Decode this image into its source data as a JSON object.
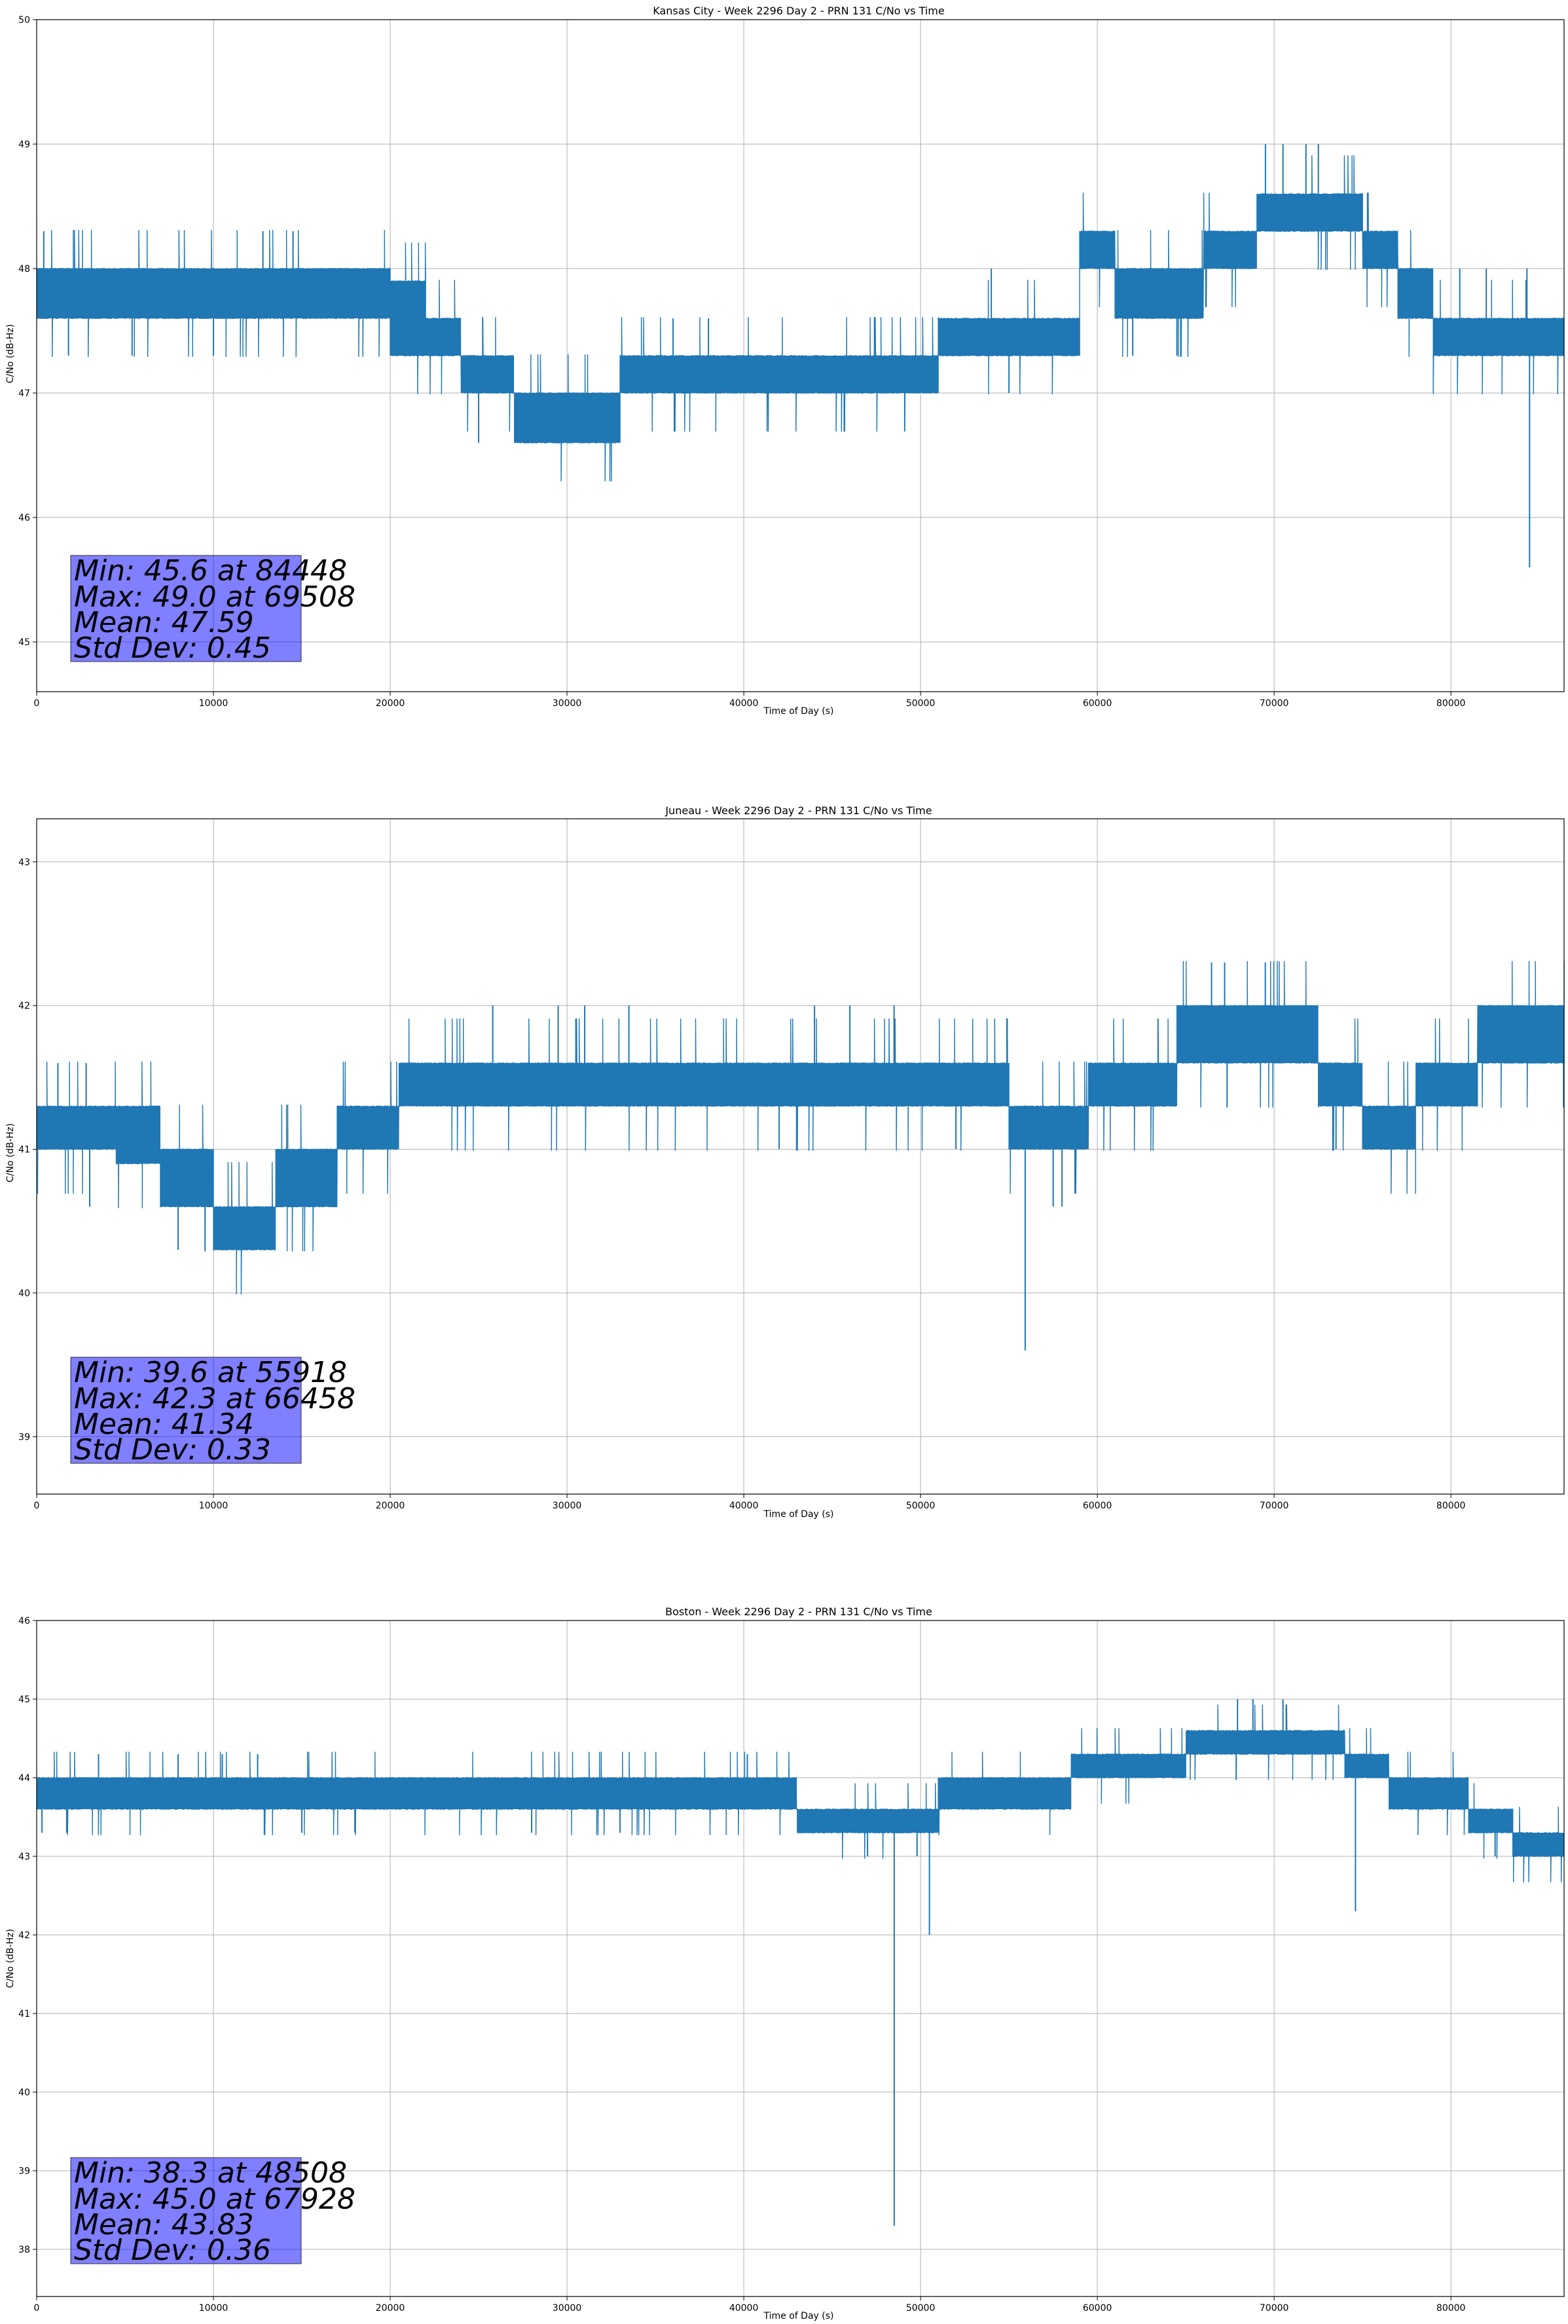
{
  "chart_data": [
    {
      "type": "line",
      "title": "Kansas City - Week 2296 Day 2 - PRN 131 C/No vs Time",
      "xlabel": "Time of Day (s)",
      "ylabel": "C/No (dB-Hz)",
      "xlim": [
        0,
        86400
      ],
      "ylim": [
        44.6,
        50.0
      ],
      "xticks": [
        0,
        10000,
        20000,
        30000,
        40000,
        50000,
        60000,
        70000,
        80000
      ],
      "yticks": [
        45,
        46,
        47,
        48,
        49,
        50
      ],
      "grid": true,
      "line_color": "#1f77b4",
      "quantum": 0.31,
      "series": [
        {
          "band_segments": [
            {
              "x0": 0,
              "x1": 20000,
              "lo": 47.6,
              "hi": 48.0
            },
            {
              "x0": 20000,
              "x1": 22000,
              "lo": 47.3,
              "hi": 47.9
            },
            {
              "x0": 22000,
              "x1": 24000,
              "lo": 47.3,
              "hi": 47.6
            },
            {
              "x0": 24000,
              "x1": 27000,
              "lo": 47.0,
              "hi": 47.3
            },
            {
              "x0": 27000,
              "x1": 33000,
              "lo": 46.6,
              "hi": 47.0
            },
            {
              "x0": 33000,
              "x1": 40000,
              "lo": 47.0,
              "hi": 47.3
            },
            {
              "x0": 40000,
              "x1": 51000,
              "lo": 47.0,
              "hi": 47.3
            },
            {
              "x0": 51000,
              "x1": 59000,
              "lo": 47.3,
              "hi": 47.6
            },
            {
              "x0": 59000,
              "x1": 61000,
              "lo": 48.0,
              "hi": 48.3
            },
            {
              "x0": 61000,
              "x1": 66000,
              "lo": 47.6,
              "hi": 48.0
            },
            {
              "x0": 66000,
              "x1": 69000,
              "lo": 48.0,
              "hi": 48.3
            },
            {
              "x0": 69000,
              "x1": 75000,
              "lo": 48.3,
              "hi": 48.6
            },
            {
              "x0": 75000,
              "x1": 77000,
              "lo": 48.0,
              "hi": 48.3
            },
            {
              "x0": 77000,
              "x1": 79000,
              "lo": 47.6,
              "hi": 48.0
            },
            {
              "x0": 79000,
              "x1": 86400,
              "lo": 47.3,
              "hi": 47.6
            }
          ],
          "spikes": [
            {
              "x": 84448,
              "y": 45.6
            },
            {
              "x": 69508,
              "y": 49.0
            },
            {
              "x": 70500,
              "y": 49.0
            },
            {
              "x": 71800,
              "y": 49.0
            },
            {
              "x": 12800,
              "y": 48.3
            },
            {
              "x": 14500,
              "y": 48.3
            },
            {
              "x": 400,
              "y": 48.3
            },
            {
              "x": 1800,
              "y": 47.3
            },
            {
              "x": 5400,
              "y": 47.3
            },
            {
              "x": 10000,
              "y": 47.3
            },
            {
              "x": 25000,
              "y": 46.6
            },
            {
              "x": 36000,
              "y": 47.6
            },
            {
              "x": 38000,
              "y": 47.6
            },
            {
              "x": 55000,
              "y": 47.0
            },
            {
              "x": 54000,
              "y": 48.0
            },
            {
              "x": 62000,
              "y": 47.3
            },
            {
              "x": 64500,
              "y": 47.3
            },
            {
              "x": 72500,
              "y": 49.0
            },
            {
              "x": 80500,
              "y": 48.0
            },
            {
              "x": 82000,
              "y": 48.0
            },
            {
              "x": 84300,
              "y": 48.0
            },
            {
              "x": 85500,
              "y": 47.3
            }
          ]
        }
      ],
      "stats": {
        "min": "Min: 45.6 at 84448",
        "max": "Max: 49.0 at 69508",
        "mean": "Mean: 47.59",
        "std": "Std Dev: 0.45"
      }
    },
    {
      "type": "line",
      "title": "Juneau - Week 2296 Day 2 - PRN 131 C/No vs Time",
      "xlabel": "Time of Day (s)",
      "ylabel": "C/No (dB-Hz)",
      "xlim": [
        0,
        86400
      ],
      "ylim": [
        38.6,
        43.3
      ],
      "xticks": [
        0,
        10000,
        20000,
        30000,
        40000,
        50000,
        60000,
        70000,
        80000
      ],
      "yticks": [
        39,
        40,
        41,
        42,
        43
      ],
      "grid": true,
      "line_color": "#1f77b4",
      "quantum": 0.31,
      "series": [
        {
          "band_segments": [
            {
              "x0": 0,
              "x1": 4500,
              "lo": 41.0,
              "hi": 41.3
            },
            {
              "x0": 4500,
              "x1": 7000,
              "lo": 40.9,
              "hi": 41.3
            },
            {
              "x0": 7000,
              "x1": 10000,
              "lo": 40.6,
              "hi": 41.0
            },
            {
              "x0": 10000,
              "x1": 13500,
              "lo": 40.3,
              "hi": 40.6
            },
            {
              "x0": 13500,
              "x1": 17000,
              "lo": 40.6,
              "hi": 41.0
            },
            {
              "x0": 17000,
              "x1": 20500,
              "lo": 41.0,
              "hi": 41.3
            },
            {
              "x0": 20500,
              "x1": 55000,
              "lo": 41.3,
              "hi": 41.6
            },
            {
              "x0": 55000,
              "x1": 59500,
              "lo": 41.0,
              "hi": 41.3
            },
            {
              "x0": 59500,
              "x1": 64500,
              "lo": 41.3,
              "hi": 41.6
            },
            {
              "x0": 64500,
              "x1": 66500,
              "lo": 41.6,
              "hi": 42.0
            },
            {
              "x0": 66500,
              "x1": 72500,
              "lo": 41.6,
              "hi": 42.0
            },
            {
              "x0": 72500,
              "x1": 75000,
              "lo": 41.3,
              "hi": 41.6
            },
            {
              "x0": 75000,
              "x1": 78000,
              "lo": 41.0,
              "hi": 41.3
            },
            {
              "x0": 78000,
              "x1": 81500,
              "lo": 41.3,
              "hi": 41.6
            },
            {
              "x0": 81500,
              "x1": 86400,
              "lo": 41.6,
              "hi": 42.0
            }
          ],
          "spikes": [
            {
              "x": 55918,
              "y": 39.6
            },
            {
              "x": 66458,
              "y": 42.3
            },
            {
              "x": 67200,
              "y": 42.3
            },
            {
              "x": 69500,
              "y": 42.3
            },
            {
              "x": 3000,
              "y": 40.6
            },
            {
              "x": 8000,
              "y": 40.3
            },
            {
              "x": 1200,
              "y": 41.6
            },
            {
              "x": 2800,
              "y": 41.6
            },
            {
              "x": 25800,
              "y": 42.0
            },
            {
              "x": 29500,
              "y": 42.0
            },
            {
              "x": 31000,
              "y": 42.0
            },
            {
              "x": 33500,
              "y": 42.0
            },
            {
              "x": 42000,
              "y": 41.0
            },
            {
              "x": 44000,
              "y": 42.0
            },
            {
              "x": 46000,
              "y": 42.0
            },
            {
              "x": 48500,
              "y": 42.0
            },
            {
              "x": 52000,
              "y": 41.0
            },
            {
              "x": 57500,
              "y": 40.6
            },
            {
              "x": 58000,
              "y": 40.6
            },
            {
              "x": 73500,
              "y": 41.0
            },
            {
              "x": 76500,
              "y": 41.0
            },
            {
              "x": 83000,
              "y": 42.0
            }
          ]
        }
      ],
      "stats": {
        "min": "Min: 39.6 at 55918",
        "max": "Max: 42.3 at 66458",
        "mean": "Mean: 41.34",
        "std": "Std Dev: 0.33"
      }
    },
    {
      "type": "line",
      "title": "Boston - Week 2296 Day 2 - PRN 131 C/No vs Time",
      "xlabel": "Time of Day (s)",
      "ylabel": "C/No (dB-Hz)",
      "xlim": [
        0,
        86400
      ],
      "ylim": [
        37.4,
        46.0
      ],
      "xticks": [
        0,
        10000,
        20000,
        30000,
        40000,
        50000,
        60000,
        70000,
        80000
      ],
      "yticks": [
        38,
        39,
        40,
        41,
        42,
        43,
        44,
        45,
        46
      ],
      "grid": true,
      "line_color": "#1f77b4",
      "quantum": 0.33,
      "series": [
        {
          "band_segments": [
            {
              "x0": 0,
              "x1": 2000,
              "lo": 43.6,
              "hi": 44.0
            },
            {
              "x0": 2000,
              "x1": 43000,
              "lo": 43.6,
              "hi": 44.0
            },
            {
              "x0": 43000,
              "x1": 51000,
              "lo": 43.3,
              "hi": 43.6
            },
            {
              "x0": 51000,
              "x1": 58500,
              "lo": 43.6,
              "hi": 44.0
            },
            {
              "x0": 58500,
              "x1": 65000,
              "lo": 44.0,
              "hi": 44.3
            },
            {
              "x0": 65000,
              "x1": 74000,
              "lo": 44.3,
              "hi": 44.6
            },
            {
              "x0": 74000,
              "x1": 76500,
              "lo": 44.0,
              "hi": 44.3
            },
            {
              "x0": 76500,
              "x1": 81000,
              "lo": 43.6,
              "hi": 44.0
            },
            {
              "x0": 81000,
              "x1": 83500,
              "lo": 43.3,
              "hi": 43.6
            },
            {
              "x0": 83500,
              "x1": 86400,
              "lo": 43.0,
              "hi": 43.3
            }
          ],
          "spikes": [
            {
              "x": 48508,
              "y": 38.3
            },
            {
              "x": 67928,
              "y": 45.0
            },
            {
              "x": 68800,
              "y": 45.0
            },
            {
              "x": 70500,
              "y": 45.0
            },
            {
              "x": 50500,
              "y": 42.0
            },
            {
              "x": 74600,
              "y": 42.3
            },
            {
              "x": 47000,
              "y": 43.0
            },
            {
              "x": 49800,
              "y": 43.0
            },
            {
              "x": 40200,
              "y": 44.3
            },
            {
              "x": 3500,
              "y": 44.3
            },
            {
              "x": 8000,
              "y": 44.3
            },
            {
              "x": 10500,
              "y": 44.3
            },
            {
              "x": 12500,
              "y": 44.3
            },
            {
              "x": 300,
              "y": 43.3
            },
            {
              "x": 1700,
              "y": 43.3
            },
            {
              "x": 15000,
              "y": 43.3
            },
            {
              "x": 18000,
              "y": 43.3
            },
            {
              "x": 28000,
              "y": 43.3
            },
            {
              "x": 33000,
              "y": 43.3
            },
            {
              "x": 82500,
              "y": 43.0
            },
            {
              "x": 80000,
              "y": 44.0
            }
          ]
        }
      ],
      "stats": {
        "min": "Min: 38.3 at 48508",
        "max": "Max: 45.0 at 67928",
        "mean": "Mean: 43.83",
        "std": "Std Dev: 0.36"
      }
    }
  ]
}
